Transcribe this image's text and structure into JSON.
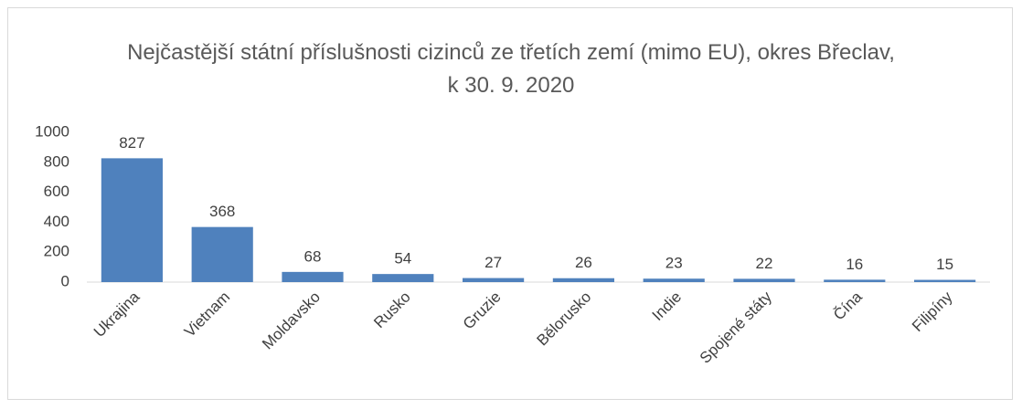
{
  "chart_data": {
    "type": "bar",
    "title": "Nejčastější státní příslušnosti cizinců ze třetích zemí (mimo EU), okres Břeclav, k 30. 9. 2020",
    "categories": [
      "Ukrajina",
      "Vietnam",
      "Moldavsko",
      "Rusko",
      "Gruzie",
      "Bělorusko",
      "Indie",
      "Spojené státy",
      "Čína",
      "Filipíny"
    ],
    "values": [
      827,
      368,
      68,
      54,
      27,
      26,
      23,
      22,
      16,
      15
    ],
    "color": "#4f81bd",
    "ylim": [
      0,
      1000
    ],
    "yticks": [
      0,
      200,
      400,
      600,
      800,
      1000
    ],
    "grid": false
  }
}
